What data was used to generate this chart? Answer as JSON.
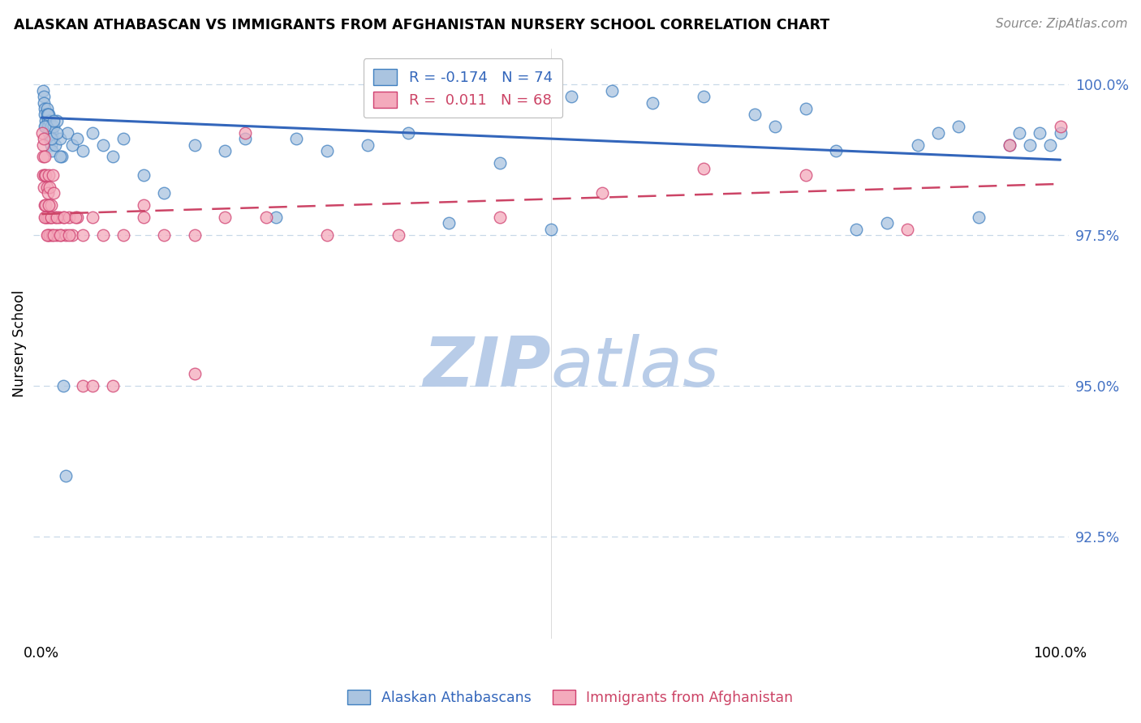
{
  "title": "ALASKAN ATHABASCAN VS IMMIGRANTS FROM AFGHANISTAN NURSERY SCHOOL CORRELATION CHART",
  "source": "Source: ZipAtlas.com",
  "ylabel": "Nursery School",
  "blue_R": -0.174,
  "blue_N": 74,
  "pink_R": 0.011,
  "pink_N": 68,
  "blue_color": "#aac4e0",
  "pink_color": "#f4aabc",
  "blue_edge_color": "#4080c0",
  "pink_edge_color": "#d04070",
  "blue_line_color": "#3366bb",
  "pink_line_color": "#cc4466",
  "watermark_zip": "ZIP",
  "watermark_atlas": "atlas",
  "watermark_color_zip": "#b8cce8",
  "watermark_color_atlas": "#b8cce8",
  "background_color": "#ffffff",
  "grid_color": "#c8d8e8",
  "ytick_color": "#4472c4",
  "blue_line_y0": 99.45,
  "blue_line_y1": 98.75,
  "pink_line_y0": 97.85,
  "pink_line_y1": 98.35,
  "ylim_min": 90.8,
  "ylim_max": 100.6,
  "xlim_min": -0.008,
  "xlim_max": 1.008,
  "blue_x": [
    0.001,
    0.002,
    0.002,
    0.003,
    0.003,
    0.004,
    0.004,
    0.005,
    0.005,
    0.006,
    0.006,
    0.007,
    0.007,
    0.008,
    0.008,
    0.009,
    0.009,
    0.01,
    0.01,
    0.011,
    0.012,
    0.013,
    0.015,
    0.018,
    0.02,
    0.025,
    0.03,
    0.035,
    0.04,
    0.05,
    0.06,
    0.07,
    0.08,
    0.1,
    0.12,
    0.15,
    0.18,
    0.2,
    0.23,
    0.25,
    0.28,
    0.32,
    0.36,
    0.4,
    0.45,
    0.5,
    0.52,
    0.56,
    0.6,
    0.65,
    0.7,
    0.72,
    0.75,
    0.78,
    0.8,
    0.83,
    0.86,
    0.88,
    0.9,
    0.92,
    0.95,
    0.96,
    0.97,
    0.98,
    0.99,
    1.0,
    0.003,
    0.006,
    0.009,
    0.012,
    0.015,
    0.018,
    0.021,
    0.024
  ],
  "blue_y": [
    99.9,
    99.8,
    99.7,
    99.6,
    99.5,
    99.4,
    99.3,
    99.6,
    99.5,
    99.4,
    99.3,
    99.5,
    99.2,
    99.4,
    99.1,
    99.3,
    99.0,
    99.2,
    98.9,
    99.1,
    99.3,
    99.0,
    99.4,
    99.1,
    98.8,
    99.2,
    99.0,
    99.1,
    98.9,
    99.2,
    99.0,
    98.8,
    99.1,
    98.5,
    98.2,
    99.0,
    98.9,
    99.1,
    97.8,
    99.1,
    98.9,
    99.0,
    99.2,
    97.7,
    98.7,
    97.6,
    99.8,
    99.9,
    99.7,
    99.8,
    99.5,
    99.3,
    99.6,
    98.9,
    97.6,
    97.7,
    99.0,
    99.2,
    99.3,
    97.8,
    99.0,
    99.2,
    99.0,
    99.2,
    99.0,
    99.2,
    99.3,
    99.5,
    99.1,
    99.4,
    99.2,
    98.8,
    95.0,
    93.5
  ],
  "pink_x": [
    0.0005,
    0.001,
    0.001,
    0.0015,
    0.002,
    0.002,
    0.0025,
    0.003,
    0.003,
    0.0035,
    0.004,
    0.004,
    0.005,
    0.005,
    0.006,
    0.006,
    0.007,
    0.007,
    0.008,
    0.008,
    0.009,
    0.009,
    0.01,
    0.011,
    0.012,
    0.013,
    0.015,
    0.017,
    0.019,
    0.021,
    0.024,
    0.027,
    0.03,
    0.035,
    0.04,
    0.05,
    0.06,
    0.08,
    0.1,
    0.12,
    0.15,
    0.18,
    0.22,
    0.28,
    0.35,
    0.45,
    0.55,
    0.65,
    0.75,
    0.85,
    0.95,
    1.0,
    0.003,
    0.005,
    0.007,
    0.009,
    0.012,
    0.015,
    0.018,
    0.022,
    0.027,
    0.033,
    0.04,
    0.05,
    0.07,
    0.1,
    0.15,
    0.2
  ],
  "pink_y": [
    99.2,
    99.0,
    98.8,
    98.5,
    99.1,
    98.3,
    98.8,
    98.5,
    98.0,
    97.8,
    98.5,
    98.0,
    98.3,
    97.8,
    98.2,
    97.5,
    98.5,
    97.8,
    98.3,
    97.5,
    98.0,
    97.8,
    97.5,
    98.5,
    98.2,
    97.8,
    97.5,
    97.8,
    97.5,
    97.8,
    97.5,
    97.8,
    97.5,
    97.8,
    97.5,
    97.8,
    97.5,
    97.5,
    97.8,
    97.5,
    97.5,
    97.8,
    97.8,
    97.5,
    97.5,
    97.8,
    98.2,
    98.6,
    98.5,
    97.6,
    99.0,
    99.3,
    97.8,
    97.5,
    98.0,
    97.8,
    97.5,
    97.8,
    97.5,
    97.8,
    97.5,
    97.8,
    95.0,
    95.0,
    95.0,
    98.0,
    95.2,
    99.2
  ]
}
